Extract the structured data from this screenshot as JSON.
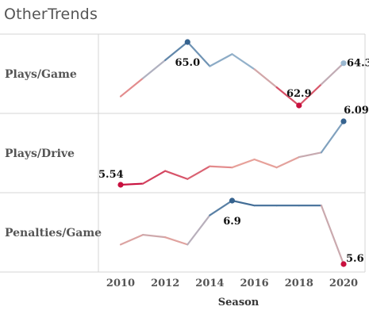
{
  "title": "OtherTrends",
  "chart_data": {
    "type": "line",
    "x": [
      2010,
      2011,
      2012,
      2013,
      2014,
      2015,
      2016,
      2017,
      2018,
      2019,
      2020
    ],
    "xticks": [
      2010,
      2012,
      2014,
      2016,
      2018,
      2020
    ],
    "xlabel": "Season",
    "grid": true,
    "color_scale": [
      "#c8103e",
      "#e8a19a",
      "#9ab7cf",
      "#36638f"
    ],
    "panels": [
      {
        "name": "Plays/Game",
        "values": [
          63.2,
          63.8,
          64.4,
          65.0,
          64.2,
          64.6,
          64.1,
          63.5,
          62.9,
          63.6,
          64.3
        ],
        "labels": [
          {
            "index": 3,
            "text": "65.0"
          },
          {
            "index": 8,
            "text": "62.9"
          },
          {
            "index": 10,
            "text": "64.3"
          }
        ]
      },
      {
        "name": "Plays/Drive",
        "values": [
          5.54,
          5.55,
          5.66,
          5.59,
          5.7,
          5.69,
          5.76,
          5.69,
          5.78,
          5.82,
          6.09
        ],
        "labels": [
          {
            "index": 0,
            "text": "5.54"
          },
          {
            "index": 10,
            "text": "6.09"
          }
        ]
      },
      {
        "name": "Penalties/Game",
        "values": [
          6.0,
          6.2,
          6.15,
          6.0,
          6.6,
          6.9,
          6.8,
          6.8,
          6.8,
          6.8,
          5.6
        ],
        "labels": [
          {
            "index": 5,
            "text": "6.9"
          },
          {
            "index": 10,
            "text": "5.6"
          }
        ]
      }
    ]
  }
}
